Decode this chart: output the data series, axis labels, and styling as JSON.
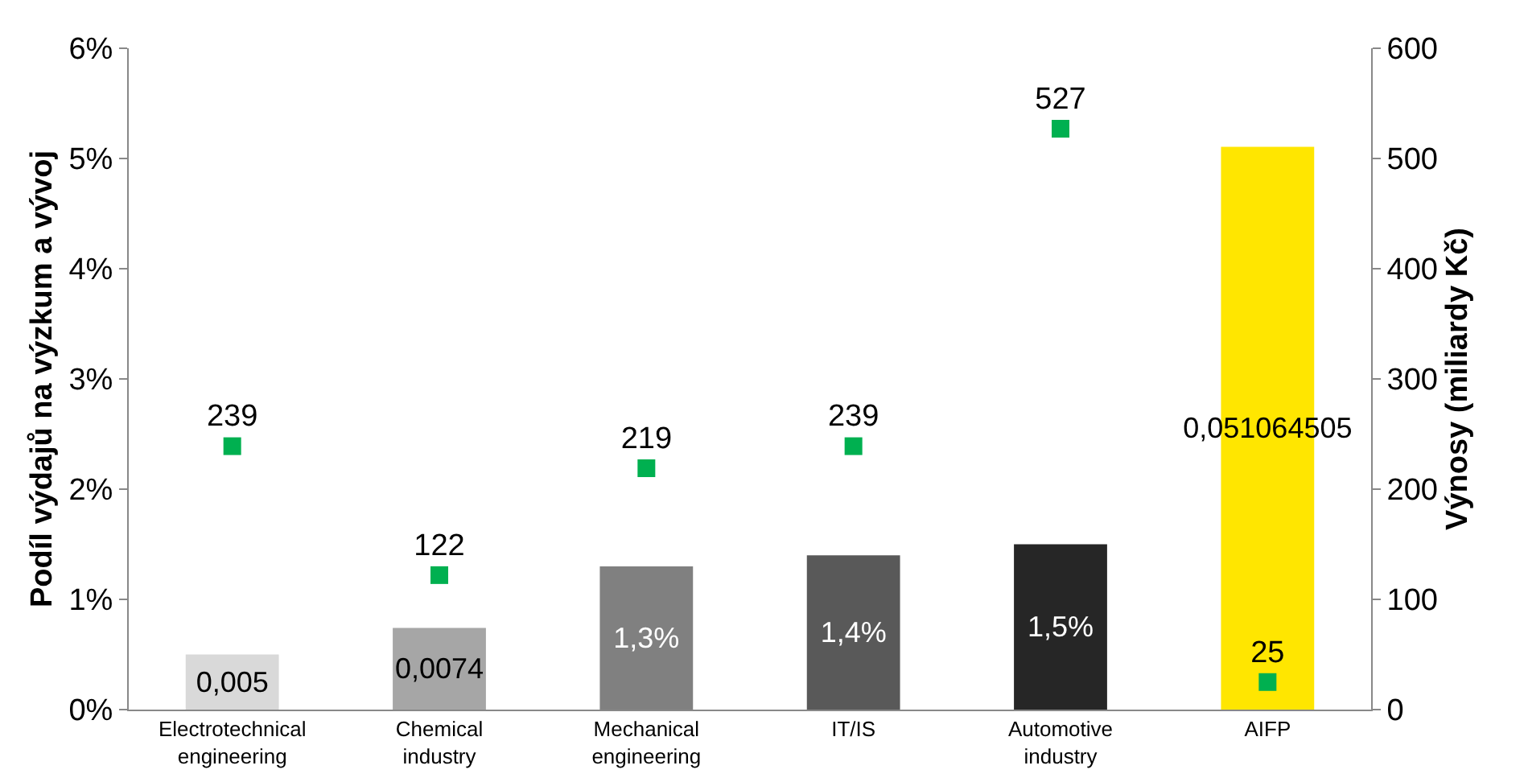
{
  "chart_data": {
    "type": "bar",
    "categories": [
      "Electrotechnical engineering",
      "Chemical industry",
      "Mechanical engineering",
      "IT/IS",
      "Automotive industry",
      "AIFP"
    ],
    "ylabel": "Podíl výdajů na výzkum a vývoj",
    "y2label": "Výnosy (miliardy Kč)",
    "ylim": [
      0,
      0.06
    ],
    "yticks": [
      {
        "value": 0,
        "label": "0%"
      },
      {
        "value": 0.01,
        "label": "1%"
      },
      {
        "value": 0.02,
        "label": "2%"
      },
      {
        "value": 0.03,
        "label": "3%"
      },
      {
        "value": 0.04,
        "label": "4%"
      },
      {
        "value": 0.05,
        "label": "5%"
      },
      {
        "value": 0.06,
        "label": "6%"
      }
    ],
    "y2lim": [
      0,
      600
    ],
    "y2ticks": [
      0,
      100,
      200,
      300,
      400,
      500,
      600
    ],
    "series": [
      {
        "colors": [
          "#d9d9d9",
          "#a6a6a6",
          "#808080",
          "#595959",
          "#262626",
          "#ffe600"
        ],
        "values": [
          0.005,
          0.0074,
          0.013,
          0.014,
          0.015,
          0.051064505
        ],
        "value_labels": [
          "0,005",
          "0,0074",
          "1,3%",
          "1,4%",
          "1,5%",
          "0,051064505"
        ]
      },
      {
        "type": "scatter",
        "axis": "y2",
        "color": "#00b050",
        "marker": "square",
        "values": [
          239,
          122,
          219,
          239,
          527,
          25
        ],
        "value_labels": [
          "239",
          "122",
          "219",
          "239",
          "527",
          "25"
        ]
      }
    ],
    "grid": false
  }
}
